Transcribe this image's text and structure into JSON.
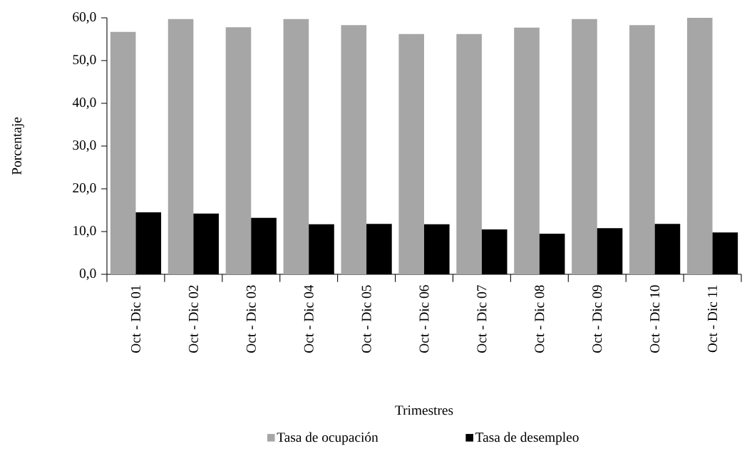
{
  "chart_data": {
    "type": "bar",
    "xlabel": "Trimestres",
    "ylabel": "Porcentaje",
    "categories": [
      "Oct - Dic 01",
      "Oct - Dic 02",
      "Oct - Dic 03",
      "Oct - Dic 04",
      "Oct - Dic 05",
      "Oct - Dic 06",
      "Oct - Dic 07",
      "Oct - Dic 08",
      "Oct - Dic 09",
      "Oct - Dic 10",
      "Oct - Dic 11"
    ],
    "series": [
      {
        "name": "Tasa de ocupación",
        "color": "#a6a6a6",
        "values": [
          56.7,
          59.7,
          57.8,
          59.7,
          58.3,
          56.2,
          56.2,
          57.7,
          59.7,
          58.3,
          60.0
        ]
      },
      {
        "name": "Tasa de desempleo",
        "color": "#000000",
        "values": [
          14.5,
          14.2,
          13.2,
          11.7,
          11.8,
          11.7,
          10.5,
          9.5,
          10.8,
          11.8,
          9.8
        ]
      }
    ],
    "ylim": [
      0,
      60
    ],
    "yticks": [
      {
        "value": 0,
        "label": "0,0"
      },
      {
        "value": 10,
        "label": "10,0"
      },
      {
        "value": 20,
        "label": "20,0"
      },
      {
        "value": 30,
        "label": "30,0"
      },
      {
        "value": 40,
        "label": "40,0"
      },
      {
        "value": 50,
        "label": "50,0"
      },
      {
        "value": 60,
        "label": "60,0"
      }
    ],
    "grid": false,
    "legend": "bottom"
  }
}
